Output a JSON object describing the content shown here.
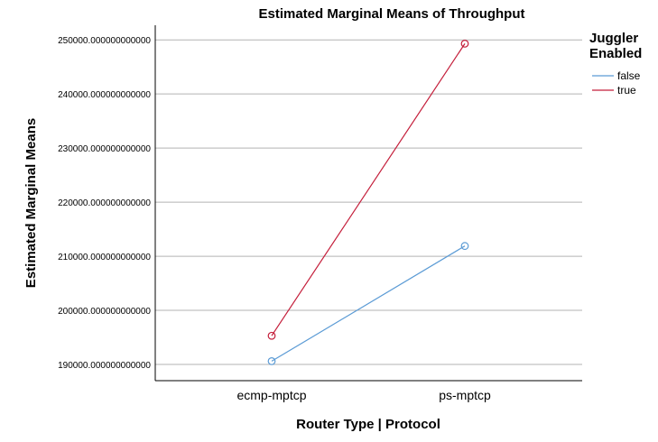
{
  "chart_data": {
    "type": "line",
    "title": "Estimated Marginal Means of Throughput",
    "xlabel": "Router Type | Protocol",
    "ylabel": "Estimated Marginal Means",
    "categories": [
      "ecmp-mptcp",
      "ps-mptcp"
    ],
    "series": [
      {
        "name": "false",
        "color": "#5b9bd5",
        "values": [
          190600,
          211900
        ]
      },
      {
        "name": "true",
        "color": "#c41e3a",
        "values": [
          195300,
          249300
        ]
      }
    ],
    "yticks": [
      190000,
      200000,
      210000,
      220000,
      230000,
      240000,
      250000
    ],
    "ytick_labels": [
      "190000.000000000000",
      "200000.000000000000",
      "210000.000000000000",
      "220000.000000000000",
      "230000.000000000000",
      "240000.000000000000",
      "250000.000000000000"
    ],
    "ylim": [
      187000,
      252700
    ],
    "grid": true,
    "legend": {
      "title_line1": "Juggler",
      "title_line2": "Enabled",
      "position": "top-right"
    }
  }
}
